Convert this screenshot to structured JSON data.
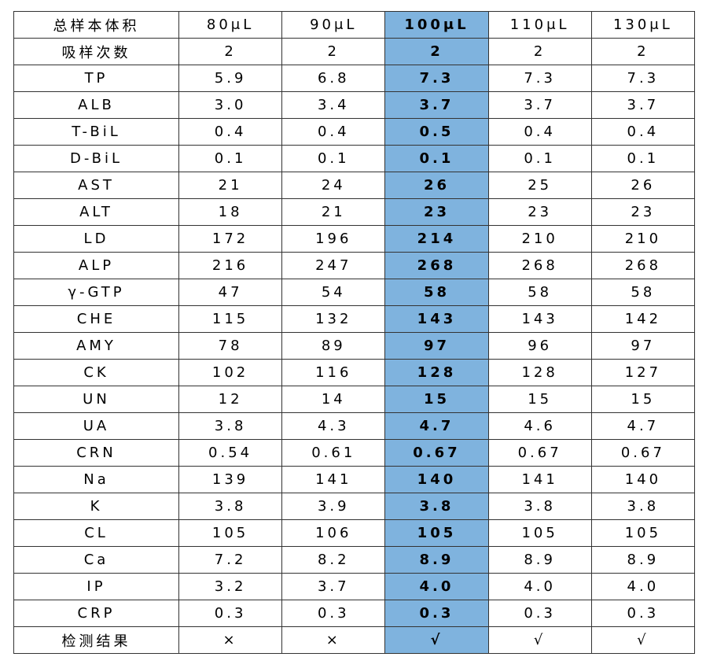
{
  "table": {
    "header": [
      "总样本体积",
      "80μL",
      "90μL",
      "100μL",
      "110μL",
      "130μL"
    ],
    "rows": [
      [
        "吸样次数",
        "2",
        "2",
        "2",
        "2",
        "2"
      ],
      [
        "TP",
        "5.9",
        "6.8",
        "7.3",
        "7.3",
        "7.3"
      ],
      [
        "ALB",
        "3.0",
        "3.4",
        "3.7",
        "3.7",
        "3.7"
      ],
      [
        "T-BiL",
        "0.4",
        "0.4",
        "0.5",
        "0.4",
        "0.4"
      ],
      [
        "D-BiL",
        "0.1",
        "0.1",
        "0.1",
        "0.1",
        "0.1"
      ],
      [
        "AST",
        "21",
        "24",
        "26",
        "25",
        "26"
      ],
      [
        "ALT",
        "18",
        "21",
        "23",
        "23",
        "23"
      ],
      [
        "LD",
        "172",
        "196",
        "214",
        "210",
        "210"
      ],
      [
        "ALP",
        "216",
        "247",
        "268",
        "268",
        "268"
      ],
      [
        "γ-GTP",
        "47",
        "54",
        "58",
        "58",
        "58"
      ],
      [
        "CHE",
        "115",
        "132",
        "143",
        "143",
        "142"
      ],
      [
        "AMY",
        "78",
        "89",
        "97",
        "96",
        "97"
      ],
      [
        "CK",
        "102",
        "116",
        "128",
        "128",
        "127"
      ],
      [
        "UN",
        "12",
        "14",
        "15",
        "15",
        "15"
      ],
      [
        "UA",
        "3.8",
        "4.3",
        "4.7",
        "4.6",
        "4.7"
      ],
      [
        "CRN",
        "0.54",
        "0.61",
        "0.67",
        "0.67",
        "0.67"
      ],
      [
        "Na",
        "139",
        "141",
        "140",
        "141",
        "140"
      ],
      [
        "K",
        "3.8",
        "3.9",
        "3.8",
        "3.8",
        "3.8"
      ],
      [
        "CL",
        "105",
        "106",
        "105",
        "105",
        "105"
      ],
      [
        "Ca",
        "7.2",
        "8.2",
        "8.9",
        "8.9",
        "8.9"
      ],
      [
        "IP",
        "3.2",
        "3.7",
        "4.0",
        "4.0",
        "4.0"
      ],
      [
        "CRP",
        "0.3",
        "0.3",
        "0.3",
        "0.3",
        "0.3"
      ],
      [
        "检测结果",
        "×",
        "×",
        "√",
        "√",
        "√"
      ]
    ]
  }
}
